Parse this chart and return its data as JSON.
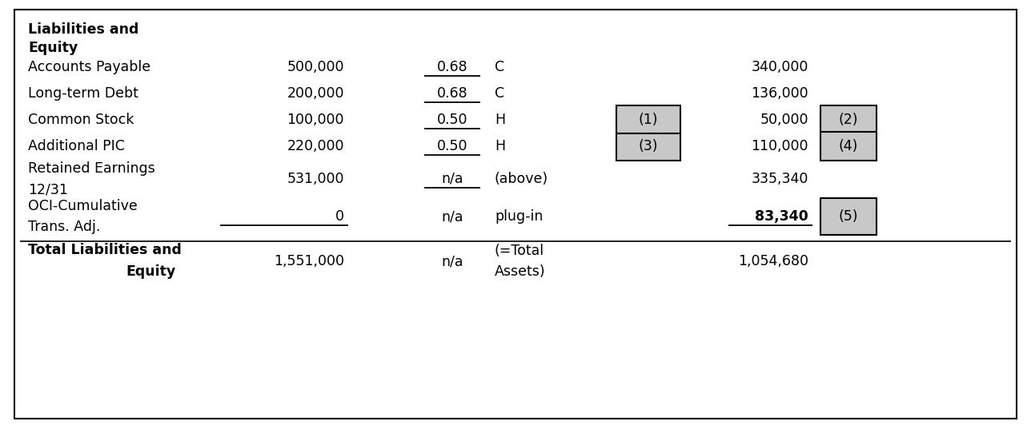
{
  "title_line1": "Liabilities and",
  "title_line2": "Equity",
  "rows": [
    {
      "label": "Accounts Payable",
      "label_bold": false,
      "label_multiline": false,
      "amount": "500,000",
      "ratio": "0.68",
      "ratio_underline": true,
      "method": "C",
      "box_left": false,
      "box_left_label": "",
      "result": "340,000",
      "result_bold": false,
      "box_right": false,
      "box_right_label": "",
      "underline_amount": false,
      "underline_result": false
    },
    {
      "label": "Long-term Debt",
      "label_bold": false,
      "label_multiline": false,
      "amount": "200,000",
      "ratio": "0.68",
      "ratio_underline": true,
      "method": "C",
      "box_left": false,
      "box_left_label": "",
      "result": "136,000",
      "result_bold": false,
      "box_right": false,
      "box_right_label": "",
      "underline_amount": false,
      "underline_result": false
    },
    {
      "label": "Common Stock",
      "label_bold": false,
      "label_multiline": false,
      "amount": "100,000",
      "ratio": "0.50",
      "ratio_underline": true,
      "method": "H",
      "box_left": true,
      "box_left_label": "(1)",
      "result": "50,000",
      "result_bold": false,
      "box_right": true,
      "box_right_label": "(2)",
      "underline_amount": false,
      "underline_result": false
    },
    {
      "label": "Additional PIC",
      "label_bold": false,
      "label_multiline": false,
      "amount": "220,000",
      "ratio": "0.50",
      "ratio_underline": true,
      "method": "H",
      "box_left": true,
      "box_left_label": "(3)",
      "result": "110,000",
      "result_bold": false,
      "box_right": true,
      "box_right_label": "(4)",
      "underline_amount": false,
      "underline_result": false
    },
    {
      "label_line1": "Retained Earnings",
      "label_line2": "12/31",
      "label_bold": false,
      "label_multiline": true,
      "amount": "531,000",
      "ratio": "n/a",
      "ratio_underline": true,
      "method": "(above)",
      "box_left": false,
      "box_left_label": "",
      "result": "335,340",
      "result_bold": false,
      "box_right": false,
      "box_right_label": "",
      "underline_amount": false,
      "underline_result": false
    },
    {
      "label_line1": "OCI-Cumulative",
      "label_line2": "Trans. Adj.",
      "label_bold": false,
      "label_multiline": true,
      "amount": "0",
      "ratio": "n/a",
      "ratio_underline": false,
      "method": "plug-in",
      "box_left": false,
      "box_left_label": "",
      "result": "83,340",
      "result_bold": true,
      "box_right": true,
      "box_right_label": "(5)",
      "underline_amount": true,
      "underline_result": true
    },
    {
      "label_line1": "Total Liabilities and",
      "label_line2": "Equity",
      "label_bold": true,
      "label_multiline": true,
      "label_line2_right": true,
      "amount": "1,551,000",
      "ratio": "n/a",
      "ratio_underline": false,
      "method_line1": "(=Total",
      "method_line2": "Assets)",
      "method_multiline": true,
      "box_left": false,
      "box_left_label": "",
      "result": "1,054,680",
      "result_bold": false,
      "box_right": false,
      "box_right_label": "",
      "underline_amount": false,
      "underline_result": false
    }
  ],
  "bg_color": "#ffffff",
  "border_color": "#000000",
  "box_fill": "#c8c8c8",
  "font_size": 12.5
}
